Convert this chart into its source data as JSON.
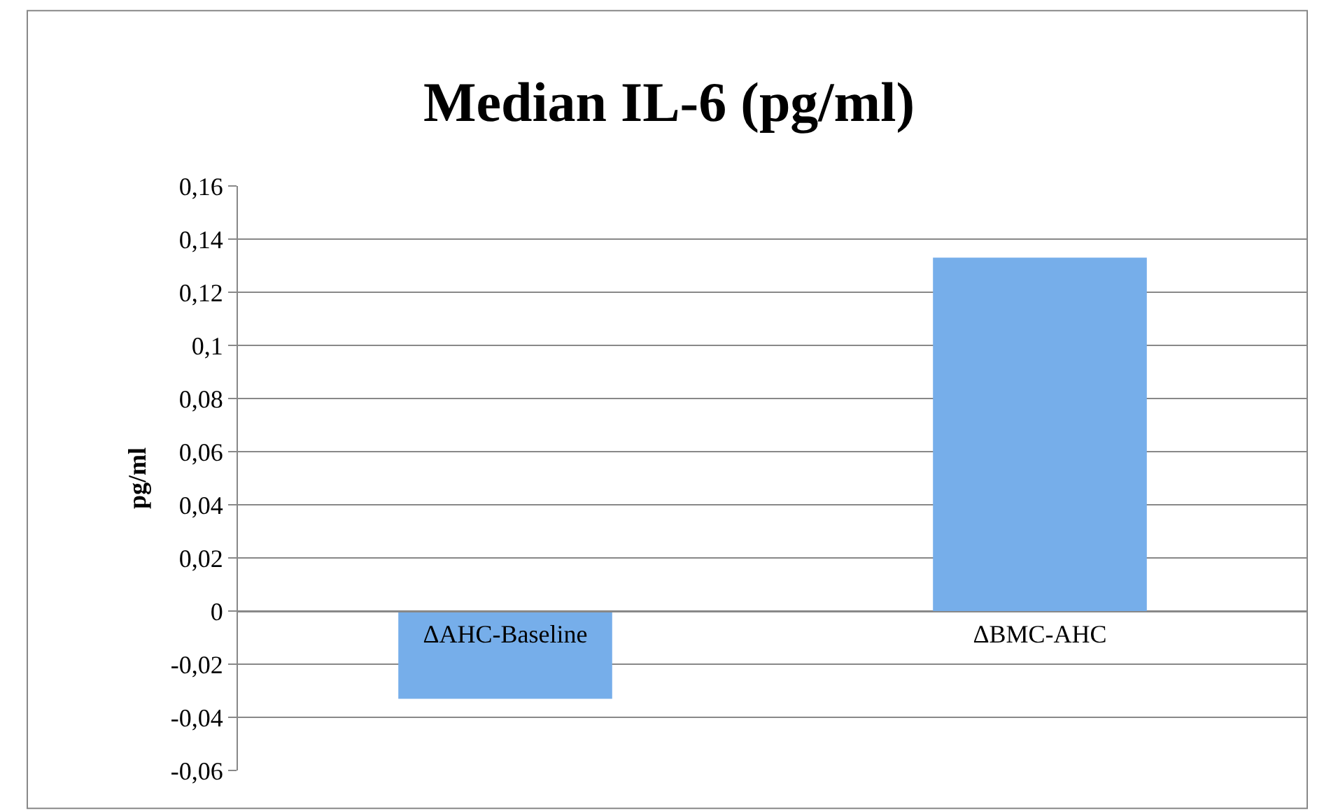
{
  "chart_data": {
    "type": "bar",
    "title": "Median IL-6 (pg/ml)",
    "ylabel": "pg/ml",
    "categories": [
      "ΔAHC-Baseline",
      "ΔBMC-AHC"
    ],
    "values": [
      -0.033,
      0.133
    ],
    "color": "#76aeea",
    "ylim": [
      -0.06,
      0.16
    ],
    "yticks": [
      {
        "value": -0.06,
        "label": "-0,06"
      },
      {
        "value": -0.04,
        "label": "-0,04"
      },
      {
        "value": -0.02,
        "label": "-0,02"
      },
      0,
      {
        "value": 0.02,
        "label": "0,02"
      },
      {
        "value": 0.04,
        "label": "0,04"
      },
      {
        "value": 0.06,
        "label": "0,06"
      },
      {
        "value": 0.08,
        "label": "0,08"
      },
      {
        "value": 0.1,
        "label": "0,1"
      },
      {
        "value": 0.12,
        "label": "0,12"
      },
      {
        "value": 0.14,
        "label": "0,14"
      },
      {
        "value": 0.16,
        "label": "0,16"
      }
    ],
    "grid": "y"
  }
}
